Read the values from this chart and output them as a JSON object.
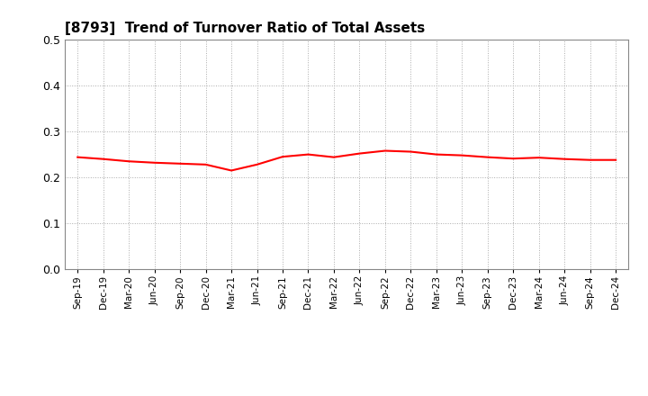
{
  "title": "[8793]  Trend of Turnover Ratio of Total Assets",
  "line_color": "#FF0000",
  "line_width": 1.5,
  "background_color": "#FFFFFF",
  "grid_color": "#AAAAAA",
  "ylim": [
    0.0,
    0.5
  ],
  "yticks": [
    0.0,
    0.1,
    0.2,
    0.3,
    0.4,
    0.5
  ],
  "x_labels": [
    "Sep-19",
    "Dec-19",
    "Mar-20",
    "Jun-20",
    "Sep-20",
    "Dec-20",
    "Mar-21",
    "Jun-21",
    "Sep-21",
    "Dec-21",
    "Mar-22",
    "Jun-22",
    "Sep-22",
    "Dec-22",
    "Mar-23",
    "Jun-23",
    "Sep-23",
    "Dec-23",
    "Mar-24",
    "Jun-24",
    "Sep-24",
    "Dec-24"
  ],
  "values": [
    0.244,
    0.24,
    0.235,
    0.232,
    0.23,
    0.228,
    0.215,
    0.228,
    0.245,
    0.25,
    0.244,
    0.252,
    0.258,
    0.256,
    0.25,
    0.248,
    0.244,
    0.241,
    0.243,
    0.24,
    0.238,
    0.238
  ]
}
